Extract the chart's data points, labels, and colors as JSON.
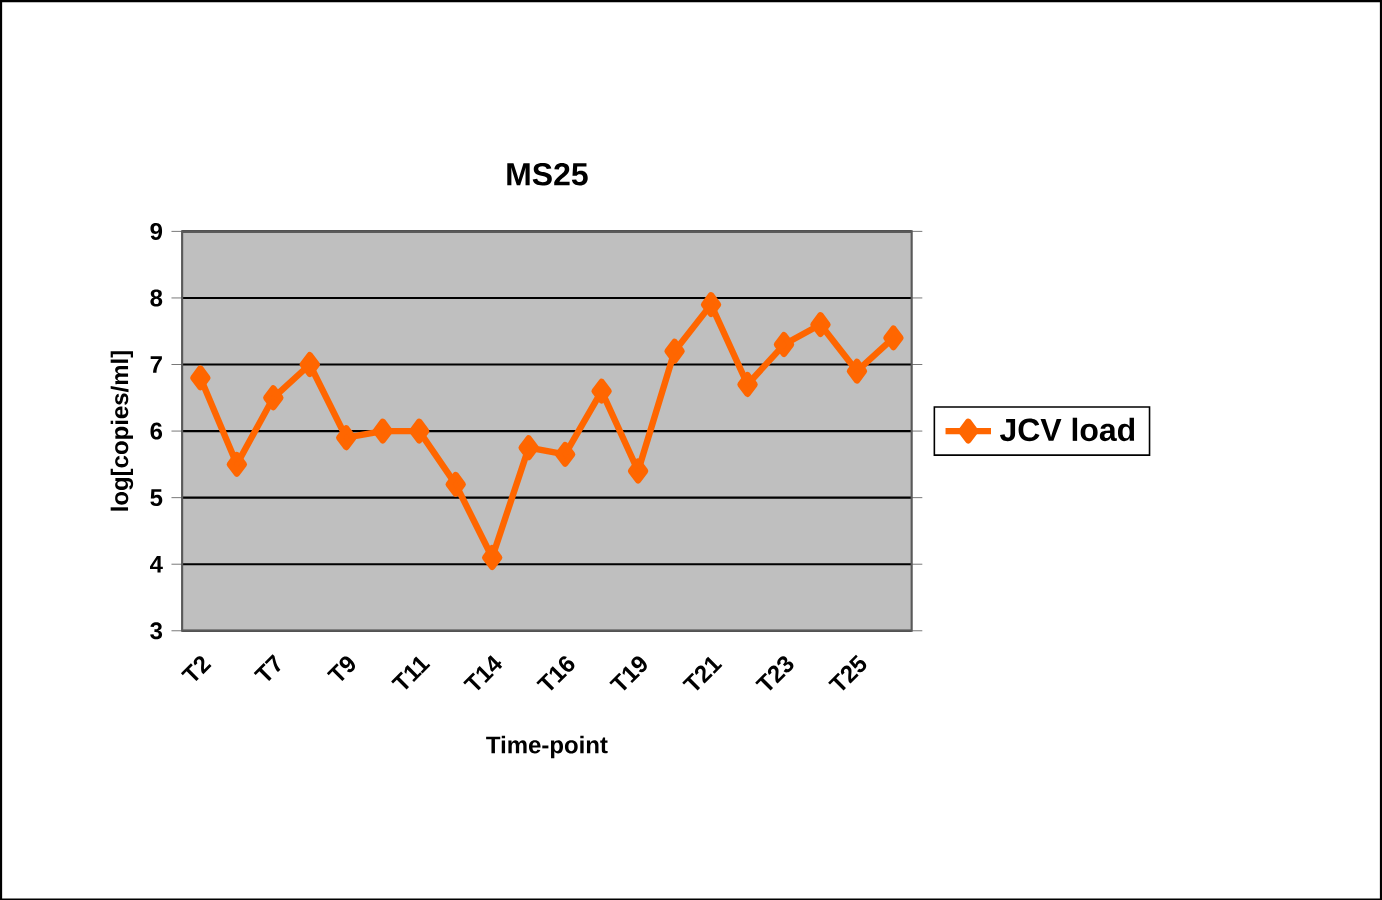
{
  "chart_data": {
    "type": "line",
    "title": "MS25",
    "xlabel": "Time-point",
    "ylabel": "log[copies/ml]",
    "categories": [
      "T2",
      null,
      "T7",
      null,
      "T9",
      null,
      "T11",
      null,
      "T14",
      null,
      "T16",
      null,
      "T19",
      null,
      "T21",
      null,
      "T23",
      null,
      "T25",
      null
    ],
    "series": [
      {
        "name": "JCV load",
        "color": "#ff6600",
        "values": [
          6.8,
          5.5,
          6.5,
          7.0,
          5.9,
          6.0,
          6.0,
          5.2,
          4.1,
          5.75,
          5.65,
          6.6,
          5.4,
          7.2,
          7.9,
          6.7,
          7.3,
          7.6,
          6.9,
          7.4
        ]
      }
    ],
    "ylim": [
      3,
      9
    ],
    "yticks": [
      3,
      4,
      5,
      6,
      7,
      8,
      9
    ],
    "grid": "y",
    "legend": "right",
    "marker": "diamond",
    "line_style": "solid"
  }
}
